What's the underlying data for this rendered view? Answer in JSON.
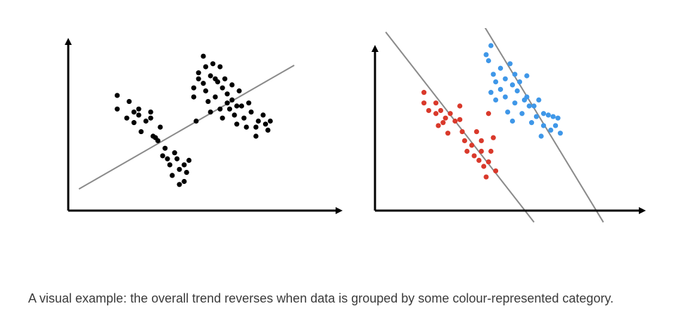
{
  "caption": "A visual example: the overall trend reverses when data is grouped by some colour-represented category.",
  "colors": {
    "axis": "#000000",
    "overall_points": "#000000",
    "trend_line": "#8a8a8a",
    "group_red": "#d9392b",
    "group_blue": "#3f97e8"
  },
  "chart_data": [
    {
      "type": "scatter",
      "title": "",
      "xlabel": "",
      "ylabel": "",
      "xlim": [
        0,
        100
      ],
      "ylim": [
        0,
        100
      ],
      "grid": false,
      "legend": "none",
      "series": [
        {
          "color": "#000000",
          "points": [
            [
              14,
              67
            ],
            [
              14,
              58
            ],
            [
              19,
              63
            ],
            [
              21,
              56
            ],
            [
              18,
              52
            ],
            [
              23,
              58
            ],
            [
              23,
              54
            ],
            [
              21,
              49
            ],
            [
              26,
              50
            ],
            [
              24,
              43
            ],
            [
              28,
              56
            ],
            [
              28,
              52
            ],
            [
              31,
              37
            ],
            [
              29,
              40
            ],
            [
              32,
              46
            ],
            [
              30,
              39
            ],
            [
              34,
              32
            ],
            [
              33,
              27
            ],
            [
              35,
              25
            ],
            [
              36,
              21
            ],
            [
              38,
              29
            ],
            [
              39,
              25
            ],
            [
              37,
              14
            ],
            [
              40,
              18
            ],
            [
              42,
              10
            ],
            [
              43,
              16
            ],
            [
              44,
              24
            ],
            [
              40,
              8
            ],
            [
              42,
              21
            ],
            [
              46,
              72
            ],
            [
              46,
              66
            ],
            [
              47,
              50
            ],
            [
              48,
              82
            ],
            [
              48,
              78
            ],
            [
              50,
              93
            ],
            [
              51,
              86
            ],
            [
              50,
              75
            ],
            [
              51,
              70
            ],
            [
              52,
              63
            ],
            [
              53,
              56
            ],
            [
              53,
              80
            ],
            [
              54,
              88
            ],
            [
              55,
              78
            ],
            [
              55,
              66
            ],
            [
              56,
              76
            ],
            [
              57,
              58
            ],
            [
              57,
              86
            ],
            [
              58,
              72
            ],
            [
              58,
              52
            ],
            [
              59,
              78
            ],
            [
              60,
              68
            ],
            [
              60,
              62
            ],
            [
              61,
              58
            ],
            [
              62,
              74
            ],
            [
              62,
              64
            ],
            [
              63,
              54
            ],
            [
              64,
              48
            ],
            [
              64,
              60
            ],
            [
              65,
              70
            ],
            [
              66,
              60
            ],
            [
              67,
              52
            ],
            [
              68,
              46
            ],
            [
              69,
              62
            ],
            [
              70,
              56
            ],
            [
              72,
              46
            ],
            [
              72,
              40
            ],
            [
              73,
              50
            ],
            [
              75,
              54
            ],
            [
              76,
              48
            ],
            [
              77,
              44
            ],
            [
              78,
              50
            ]
          ]
        }
      ],
      "trend_lines": [
        {
          "from": [
            -2,
            5
          ],
          "to": [
            88,
            87
          ]
        }
      ]
    },
    {
      "type": "scatter",
      "title": "",
      "xlabel": "",
      "ylabel": "",
      "xlim": [
        0,
        100
      ],
      "ylim": [
        0,
        100
      ],
      "grid": false,
      "legend": "none",
      "series": [
        {
          "color": "#d9392b",
          "points": [
            [
              14,
              69
            ],
            [
              14,
              62
            ],
            [
              19,
              62
            ],
            [
              16,
              57
            ],
            [
              19,
              55
            ],
            [
              21,
              57
            ],
            [
              23,
              52
            ],
            [
              25,
              55
            ],
            [
              22,
              49
            ],
            [
              20,
              47
            ],
            [
              24,
              42
            ],
            [
              27,
              50
            ],
            [
              29,
              60
            ],
            [
              29,
              51
            ],
            [
              30,
              43
            ],
            [
              31,
              37
            ],
            [
              32,
              30
            ],
            [
              34,
              34
            ],
            [
              35,
              27
            ],
            [
              36,
              43
            ],
            [
              37,
              24
            ],
            [
              38,
              30
            ],
            [
              38,
              37
            ],
            [
              39,
              20
            ],
            [
              40,
              13
            ],
            [
              41,
              23
            ],
            [
              42,
              30
            ],
            [
              44,
              17
            ],
            [
              43,
              39
            ],
            [
              41,
              55
            ]
          ]
        },
        {
          "color": "#3f97e8",
          "points": [
            [
              40,
              94
            ],
            [
              41,
              90
            ],
            [
              42,
              100
            ],
            [
              43,
              81
            ],
            [
              44,
              76
            ],
            [
              42,
              69
            ],
            [
              44,
              64
            ],
            [
              46,
              71
            ],
            [
              46,
              85
            ],
            [
              48,
              78
            ],
            [
              48,
              66
            ],
            [
              49,
              56
            ],
            [
              50,
              88
            ],
            [
              51,
              74
            ],
            [
              52,
              62
            ],
            [
              51,
              50
            ],
            [
              52,
              81
            ],
            [
              53,
              70
            ],
            [
              54,
              76
            ],
            [
              55,
              55
            ],
            [
              56,
              64
            ],
            [
              57,
              80
            ],
            [
              57,
              66
            ],
            [
              58,
              60
            ],
            [
              59,
              49
            ],
            [
              60,
              60
            ],
            [
              61,
              53
            ],
            [
              62,
              64
            ],
            [
              63,
              40
            ],
            [
              64,
              47
            ],
            [
              66,
              54
            ],
            [
              67,
              44
            ],
            [
              68,
              53
            ],
            [
              69,
              47
            ],
            [
              70,
              52
            ],
            [
              71,
              42
            ],
            [
              64,
              55
            ]
          ]
        }
      ],
      "trend_lines": [
        {
          "from": [
            -2,
            109
          ],
          "to": [
            60,
            -17
          ]
        },
        {
          "from": [
            33,
            129
          ],
          "to": [
            89,
            -17
          ]
        }
      ]
    }
  ]
}
